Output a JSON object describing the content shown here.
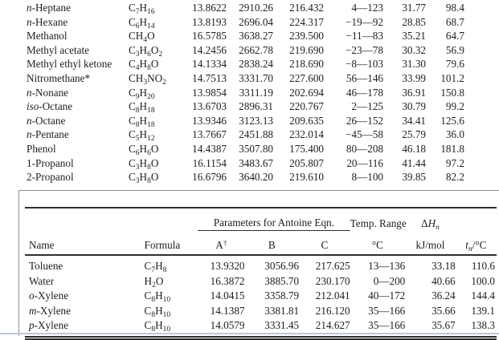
{
  "colors": {
    "background": "#ffffff",
    "text": "#1e1e1e",
    "rule": "#2e2e2e",
    "frame_border": "#8f8f8f",
    "bottom_separator": "#bcc8d2"
  },
  "top_table": {
    "rows": [
      {
        "prefix": "n-",
        "name": "Heptane",
        "formula": "C7H16",
        "A": "13.8622",
        "B": "2910.26",
        "C": "216.432",
        "range": "4—123",
        "dhn": "31.77",
        "tn": "98.4"
      },
      {
        "prefix": "n-",
        "name": "Hexane",
        "formula": "C6H14",
        "A": "13.8193",
        "B": "2696.04",
        "C": "224.317",
        "range": "−19—92",
        "dhn": "28.85",
        "tn": "68.7"
      },
      {
        "prefix": "",
        "name": "Methanol",
        "formula": "CH4O",
        "A": "16.5785",
        "B": "3638.27",
        "C": "239.500",
        "range": "−11—83",
        "dhn": "35.21",
        "tn": "64.7"
      },
      {
        "prefix": "",
        "name": "Methyl acetate",
        "formula": "C3H6O2",
        "A": "14.2456",
        "B": "2662.78",
        "C": "219.690",
        "range": "−23—78",
        "dhn": "30.32",
        "tn": "56.9"
      },
      {
        "prefix": "",
        "name": "Methyl ethyl ketone",
        "formula": "C4H8O",
        "A": "14.1334",
        "B": "2838.24",
        "C": "218.690",
        "range": "−8—103",
        "dhn": "31.30",
        "tn": "79.6"
      },
      {
        "prefix": "",
        "name": "Nitromethane*",
        "formula": "CH3NO2",
        "A": "14.7513",
        "B": "3331.70",
        "C": "227.600",
        "range": "56—146",
        "dhn": "33.99",
        "tn": "101.2"
      },
      {
        "prefix": "n-",
        "name": "Nonane",
        "formula": "C9H20",
        "A": "13.9854",
        "B": "3311.19",
        "C": "202.694",
        "range": "46—178",
        "dhn": "36.91",
        "tn": "150.8"
      },
      {
        "prefix": "iso-",
        "name": "Octane",
        "formula": "C8H18",
        "A": "13.6703",
        "B": "2896.31",
        "C": "220.767",
        "range": "2—125",
        "dhn": "30.79",
        "tn": "99.2"
      },
      {
        "prefix": "n-",
        "name": "Octane",
        "formula": "C8H18",
        "A": "13.9346",
        "B": "3123.13",
        "C": "209.635",
        "range": "26—152",
        "dhn": "34.41",
        "tn": "125.6"
      },
      {
        "prefix": "n-",
        "name": "Pentane",
        "formula": "C5H12",
        "A": "13.7667",
        "B": "2451.88",
        "C": "232.014",
        "range": "−45—58",
        "dhn": "25.79",
        "tn": "36.0"
      },
      {
        "prefix": "",
        "name": "Phenol",
        "formula": "C6H6O",
        "A": "14.4387",
        "B": "3507.80",
        "C": "175.400",
        "range": "80—208",
        "dhn": "46.18",
        "tn": "181.8"
      },
      {
        "prefix": "",
        "name": "1-Propanol",
        "formula": "C3H8O",
        "A": "16.1154",
        "B": "3483.67",
        "C": "205.807",
        "range": "20—116",
        "dhn": "41.44",
        "tn": "97.2"
      },
      {
        "prefix": "",
        "name": "2-Propanol",
        "formula": "C3H8O",
        "A": "16.6796",
        "B": "3640.20",
        "C": "219.610",
        "range": "8—100",
        "dhn": "39.85",
        "tn": "82.2"
      }
    ]
  },
  "bottom_table": {
    "headers": {
      "name": "Name",
      "formula": "Formula",
      "antoine_spanner": "Parameters for Antoine Eqn.",
      "a": "A",
      "a_dagger": "†",
      "b": "B",
      "c": "C",
      "temp_range": "Temp. Range",
      "temp_unit": "°C",
      "dhn_delta": "Δ",
      "dhn_letter": "H",
      "dhn_sub": "n",
      "dhn_unit": "kJ/mol",
      "tn_letter": "t",
      "tn_sub": "n",
      "tn_unit": "/°C"
    },
    "rows": [
      {
        "prefix": "",
        "name": "Toluene",
        "formula": "C7H8",
        "A": "13.9320",
        "B": "3056.96",
        "C": "217.625",
        "range": "13—136",
        "dhn": "33.18",
        "tn": "110.6"
      },
      {
        "prefix": "",
        "name": "Water",
        "formula": "H2O",
        "A": "16.3872",
        "B": "3885.70",
        "C": "230.170",
        "range": "0—200",
        "dhn": "40.66",
        "tn": "100.0"
      },
      {
        "prefix": "o-",
        "name": "Xylene",
        "formula": "C8H10",
        "A": "14.0415",
        "B": "3358.79",
        "C": "212.041",
        "range": "40—172",
        "dhn": "36.24",
        "tn": "144.4"
      },
      {
        "prefix": "m-",
        "name": "Xylene",
        "formula": "C8H10",
        "A": "14.1387",
        "B": "3381.81",
        "C": "216.120",
        "range": "35—166",
        "dhn": "35.66",
        "tn": "139.1"
      },
      {
        "prefix": "p-",
        "name": "Xylene",
        "formula": "C8H10",
        "A": "14.0579",
        "B": "3331.45",
        "C": "214.627",
        "range": "35—166",
        "dhn": "35.67",
        "tn": "138.3"
      }
    ]
  }
}
